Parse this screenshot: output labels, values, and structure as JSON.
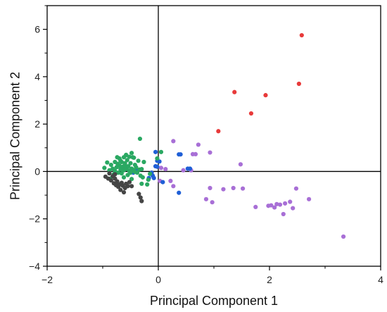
{
  "chart_data": {
    "type": "scatter",
    "title": "",
    "xlabel": "Principal Component 1",
    "ylabel": "Principal Component 2",
    "xlim": [
      -2,
      4
    ],
    "ylim": [
      -4,
      7
    ],
    "xticks": [
      "−2",
      "0",
      "2",
      "4"
    ],
    "yticks": [
      "−4",
      "−2",
      "0",
      "2",
      "4",
      "6"
    ],
    "reference_lines": {
      "x": 0,
      "y": 0
    },
    "grid": false,
    "legend": "none",
    "series": [
      {
        "color": "#e83a3a",
        "points": [
          [
            2.58,
            5.75
          ],
          [
            2.53,
            3.7
          ],
          [
            1.93,
            3.22
          ],
          [
            1.37,
            3.35
          ],
          [
            1.67,
            2.45
          ],
          [
            1.08,
            1.7
          ]
        ]
      },
      {
        "color": "#a86fd6",
        "points": [
          [
            3.33,
            -2.75
          ],
          [
            2.71,
            -1.17
          ],
          [
            2.48,
            -0.72
          ],
          [
            2.42,
            -1.55
          ],
          [
            2.37,
            -1.28
          ],
          [
            2.28,
            -1.35
          ],
          [
            2.25,
            -1.8
          ],
          [
            2.19,
            -1.4
          ],
          [
            2.13,
            -1.38
          ],
          [
            2.09,
            -1.52
          ],
          [
            2.03,
            -1.43
          ],
          [
            1.98,
            -1.45
          ],
          [
            1.75,
            -1.5
          ],
          [
            1.52,
            -0.72
          ],
          [
            1.35,
            -0.7
          ],
          [
            1.17,
            -0.75
          ],
          [
            0.93,
            -0.7
          ],
          [
            0.97,
            -1.3
          ],
          [
            0.86,
            -1.17
          ],
          [
            1.48,
            0.3
          ],
          [
            0.93,
            0.8
          ],
          [
            0.72,
            1.13
          ],
          [
            0.62,
            0.73
          ],
          [
            0.67,
            0.73
          ],
          [
            0.27,
            1.28
          ],
          [
            0.45,
            0.05
          ],
          [
            0.59,
            0.05
          ],
          [
            0.27,
            -0.62
          ],
          [
            0.22,
            -0.4
          ],
          [
            0.03,
            -0.4
          ],
          [
            -0.05,
            0.22
          ],
          [
            0.05,
            0.15
          ],
          [
            0.13,
            0.1
          ]
        ]
      },
      {
        "color": "#1f5fd6",
        "points": [
          [
            0.37,
            0.72
          ],
          [
            0.4,
            0.72
          ],
          [
            0.53,
            0.12
          ],
          [
            0.57,
            0.12
          ],
          [
            0.37,
            -0.9
          ],
          [
            -0.05,
            0.82
          ],
          [
            -0.02,
            0.45
          ],
          [
            0.02,
            0.42
          ],
          [
            -0.05,
            0.22
          ],
          [
            -0.02,
            0.2
          ],
          [
            -0.12,
            -0.05
          ],
          [
            -0.1,
            -0.18
          ],
          [
            -0.08,
            -0.28
          ],
          [
            -0.17,
            -0.28
          ],
          [
            0.08,
            -0.45
          ],
          [
            -0.38,
            0.05
          ],
          [
            -0.45,
            -0.05
          ]
        ]
      },
      {
        "color": "#2aa862",
        "points": [
          [
            -0.33,
            1.38
          ],
          [
            -0.48,
            0.78
          ],
          [
            -0.58,
            0.68
          ],
          [
            -0.62,
            0.6
          ],
          [
            -0.7,
            0.55
          ],
          [
            -0.78,
            0.4
          ],
          [
            -0.92,
            0.38
          ],
          [
            -0.97,
            0.15
          ],
          [
            -0.88,
            0.05
          ],
          [
            -0.85,
            0.28
          ],
          [
            -0.82,
            0.12
          ],
          [
            -0.78,
            0.02
          ],
          [
            -0.75,
            0.18
          ],
          [
            -0.73,
            0.32
          ],
          [
            -0.7,
            0.25
          ],
          [
            -0.68,
            0.1
          ],
          [
            -0.66,
            0.4
          ],
          [
            -0.64,
            0.2
          ],
          [
            -0.62,
            0.05
          ],
          [
            -0.6,
            0.3
          ],
          [
            -0.58,
            0.15
          ],
          [
            -0.56,
            0.48
          ],
          [
            -0.54,
            0.22
          ],
          [
            -0.52,
            0.02
          ],
          [
            -0.5,
            0.35
          ],
          [
            -0.48,
            0.12
          ],
          [
            -0.46,
            0.6
          ],
          [
            -0.44,
            0.05
          ],
          [
            -0.42,
            0.28
          ],
          [
            -0.4,
            0.18
          ],
          [
            -0.38,
            -0.05
          ],
          [
            -0.36,
            0.45
          ],
          [
            -0.34,
            0.08
          ],
          [
            -0.32,
            -0.18
          ],
          [
            -0.3,
            0.1
          ],
          [
            -0.28,
            -0.25
          ],
          [
            -0.26,
            0.4
          ],
          [
            -0.2,
            -0.55
          ],
          [
            -0.18,
            -0.35
          ],
          [
            -0.15,
            -0.1
          ],
          [
            -0.62,
            -0.25
          ],
          [
            -0.55,
            -0.15
          ],
          [
            -0.48,
            -0.32
          ],
          [
            -0.66,
            -0.08
          ],
          [
            -0.72,
            -0.05
          ],
          [
            -0.68,
            0.45
          ],
          [
            -0.74,
            0.6
          ],
          [
            -0.58,
            0.7
          ],
          [
            -0.52,
            0.62
          ],
          [
            -0.44,
            0.58
          ],
          [
            -0.02,
            0.55
          ],
          [
            0.05,
            0.82
          ],
          [
            -0.6,
            0.35
          ],
          [
            -0.56,
            0.1
          ],
          [
            -0.63,
            0.15
          ],
          [
            -0.5,
            -0.05
          ],
          [
            -0.8,
            -0.12
          ],
          [
            -0.86,
            -0.3
          ],
          [
            -0.3,
            -0.52
          ],
          [
            -0.42,
            -0.02
          ]
        ]
      },
      {
        "color": "#454545",
        "points": [
          [
            -0.95,
            -0.22
          ],
          [
            -0.9,
            -0.3
          ],
          [
            -0.88,
            -0.08
          ],
          [
            -0.85,
            -0.38
          ],
          [
            -0.82,
            -0.2
          ],
          [
            -0.8,
            -0.5
          ],
          [
            -0.78,
            -0.3
          ],
          [
            -0.76,
            -0.58
          ],
          [
            -0.74,
            -0.42
          ],
          [
            -0.72,
            -0.65
          ],
          [
            -0.7,
            -0.55
          ],
          [
            -0.68,
            -0.78
          ],
          [
            -0.66,
            -0.48
          ],
          [
            -0.64,
            -0.6
          ],
          [
            -0.62,
            -0.88
          ],
          [
            -0.6,
            -0.7
          ],
          [
            -0.58,
            -0.52
          ],
          [
            -0.55,
            -0.62
          ],
          [
            -0.52,
            -0.45
          ],
          [
            -0.48,
            -0.62
          ],
          [
            -0.32,
            -1.1
          ],
          [
            -0.3,
            -1.25
          ],
          [
            -0.35,
            -0.95
          ],
          [
            -0.78,
            -0.12
          ]
        ]
      }
    ]
  }
}
